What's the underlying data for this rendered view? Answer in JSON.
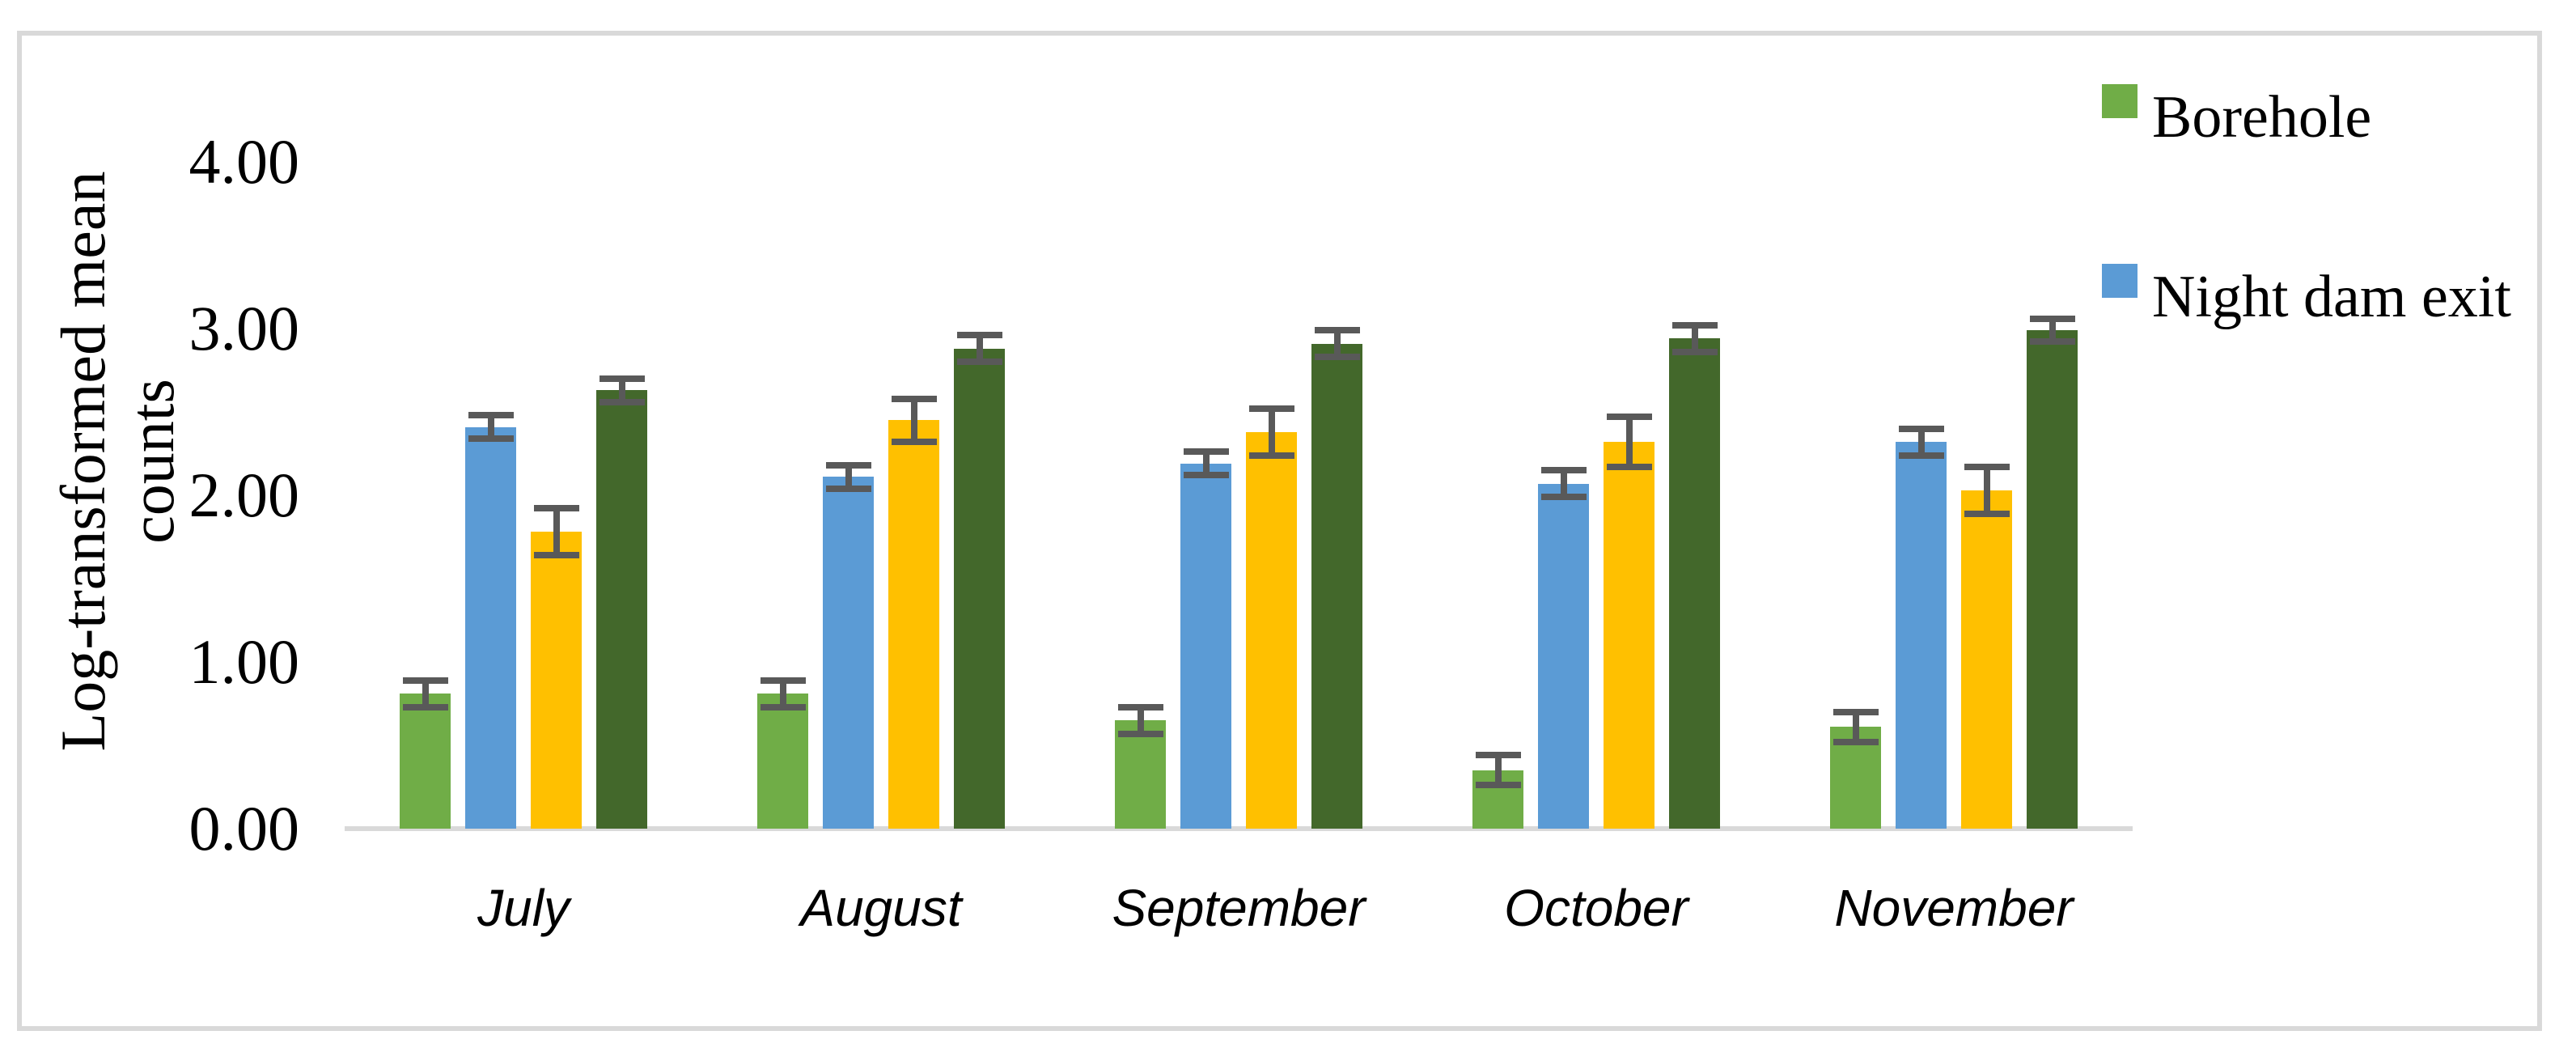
{
  "figure": {
    "kind": "grouped bar chart with error bars",
    "background": "#FFFFFF",
    "frame_color": "#D9D9D9"
  },
  "chart_data": {
    "type": "bar",
    "title": "",
    "xlabel": "",
    "ylabel": "Log-transformed mean counts",
    "ylabel_lines": [
      "Log-transformed mean",
      "counts"
    ],
    "categories": [
      "July",
      "August",
      "September",
      "October",
      "November"
    ],
    "series": [
      {
        "name": "Borehole",
        "color": "#70AD47",
        "in_legend": true,
        "values": [
          0.81,
          0.81,
          0.65,
          0.35,
          0.61
        ],
        "errors": [
          0.08,
          0.08,
          0.08,
          0.09,
          0.09
        ]
      },
      {
        "name": "Night dam exit",
        "color": "#5B9BD5",
        "in_legend": true,
        "values": [
          2.41,
          2.11,
          2.19,
          2.07,
          2.32
        ],
        "errors": [
          0.07,
          0.07,
          0.07,
          0.08,
          0.08
        ]
      },
      {
        "name": "",
        "color": "#FFC000",
        "in_legend": false,
        "values": [
          1.78,
          2.45,
          2.38,
          2.32,
          2.03
        ],
        "errors": [
          0.14,
          0.13,
          0.14,
          0.15,
          0.14
        ]
      },
      {
        "name": "",
        "color": "#43682B",
        "in_legend": false,
        "values": [
          2.63,
          2.88,
          2.91,
          2.94,
          2.99
        ],
        "errors": [
          0.07,
          0.08,
          0.08,
          0.08,
          0.07
        ]
      }
    ],
    "ylim": [
      0,
      4
    ],
    "yticks": [
      {
        "value": 0,
        "label": "0.00"
      },
      {
        "value": 1,
        "label": "1.00"
      },
      {
        "value": 2,
        "label": "2.00"
      },
      {
        "value": 3,
        "label": "3.00"
      },
      {
        "value": 4,
        "label": "4.00"
      }
    ],
    "grid": false,
    "legend_position": "right",
    "error_bar_color": "#595959",
    "axis_line_color": "#D9D9D9"
  },
  "legend": {
    "entries": [
      {
        "label": "Borehole",
        "color": "#70AD47"
      },
      {
        "label": "Night dam exit",
        "color": "#5B9BD5"
      }
    ]
  }
}
